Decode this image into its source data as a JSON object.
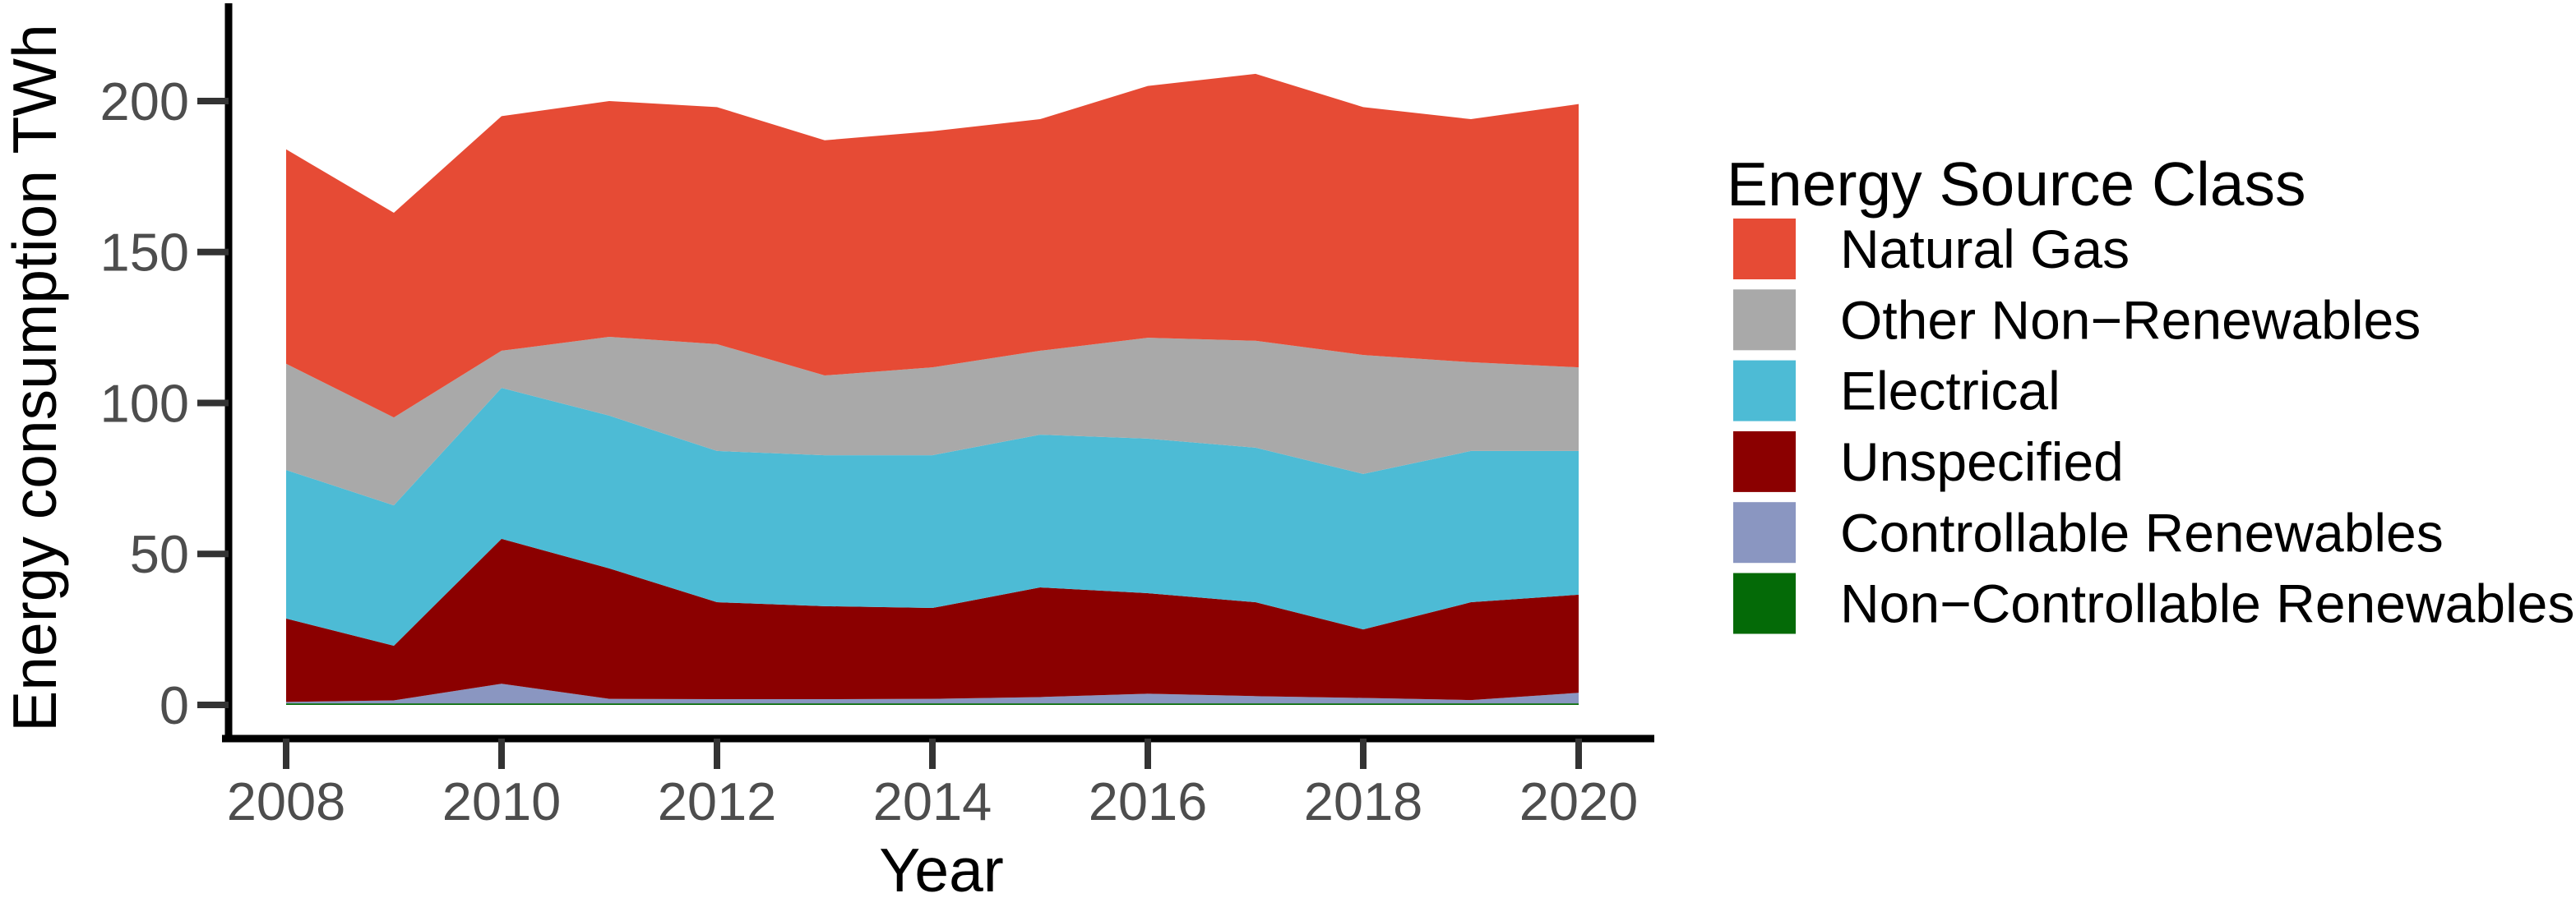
{
  "chart_data": {
    "type": "area",
    "stacked": true,
    "xlabel": "Year",
    "ylabel": "Energy consumption TWh",
    "legend_title": "Energy Source Class",
    "legend_position": "right",
    "grid": false,
    "x": [
      2008,
      2009,
      2010,
      2011,
      2012,
      2013,
      2014,
      2015,
      2016,
      2017,
      2018,
      2019,
      2020
    ],
    "x_ticks": [
      2008,
      2010,
      2012,
      2014,
      2016,
      2018,
      2020
    ],
    "y_ticks": [
      0,
      50,
      100,
      150,
      200
    ],
    "ylim": [
      0,
      231
    ],
    "xlim": [
      2008,
      2020
    ],
    "series": [
      {
        "name": "Non−Controllable Renewables",
        "color": "#046A07",
        "values": [
          0.5,
          0.5,
          0.5,
          0.5,
          0.5,
          0.5,
          0.5,
          0.5,
          0.5,
          0.5,
          0.5,
          0.5,
          0.5
        ]
      },
      {
        "name": "Controllable Renewables",
        "color": "#8A96C1",
        "values": [
          0.5,
          1.0,
          6.5,
          1.5,
          1.4,
          1.4,
          1.5,
          2.1,
          3.2,
          2.4,
          1.8,
          1.1,
          3.5
        ]
      },
      {
        "name": "Unspecified",
        "color": "#8B0000",
        "values": [
          27.6,
          18.1,
          48.0,
          43.2,
          32.1,
          30.8,
          30.1,
          36.3,
          33.3,
          31.1,
          22.7,
          32.4,
          32.5
        ]
      },
      {
        "name": "Electrical",
        "color": "#4DBBD5",
        "values": [
          49.2,
          46.5,
          50.0,
          50.6,
          50.1,
          50.0,
          50.6,
          50.6,
          51.2,
          51.2,
          51.5,
          50.1,
          47.6
        ]
      },
      {
        "name": "Other Non−Renewables",
        "color": "#A9A9A9",
        "values": [
          35.2,
          29.1,
          12.3,
          26.1,
          35.4,
          26.4,
          29.1,
          27.8,
          33.4,
          35.4,
          39.4,
          29.4,
          27.7
        ]
      },
      {
        "name": "Natural Gas",
        "color": "#E64B35",
        "values": [
          71.0,
          67.8,
          77.7,
          78.1,
          78.5,
          77.9,
          78.2,
          76.7,
          83.4,
          88.4,
          82.1,
          80.5,
          87.2
        ]
      }
    ],
    "totals": [
      184,
      163,
      195,
      200,
      198,
      187,
      190,
      194,
      205,
      209,
      198,
      194,
      199
    ]
  },
  "style": {
    "axis_line_color": "#000000",
    "tick_mark_color": "#333333",
    "tick_label_color": "#4D4D4D",
    "background": "#FFFFFF"
  }
}
